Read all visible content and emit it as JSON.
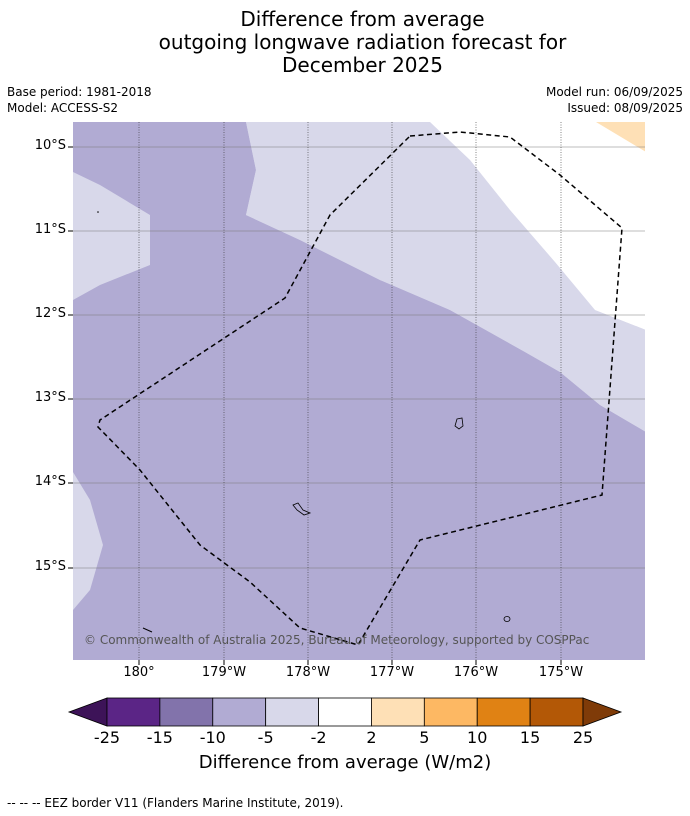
{
  "title": {
    "line1": "Difference from average",
    "line2": "outgoing longwave radiation forecast for",
    "line3": "December 2025"
  },
  "meta_left": {
    "base_period": "Base period: 1981-2018",
    "model": "Model: ACCESS-S2"
  },
  "meta_right": {
    "model_run": "Model run: 06/09/2025",
    "issued": "Issued: 08/09/2025"
  },
  "lat_ticks": [
    "10°S",
    "11°S",
    "12°S",
    "13°S",
    "14°S",
    "15°S"
  ],
  "lon_ticks": [
    "180°",
    "179°W",
    "178°W",
    "177°W",
    "176°W",
    "175°W"
  ],
  "copyright": "© Commonwealth of Australia 2025, Bureau of Meteorology, supported by COSPPac",
  "colorbar": {
    "labels": [
      "-25",
      "-15",
      "-10",
      "-5",
      "-2",
      "2",
      "5",
      "10",
      "15",
      "25"
    ],
    "colors": [
      "#3d1358",
      "#5b2586",
      "#8273ab",
      "#b1abd3",
      "#d8d8ea",
      "#ffffff",
      "#fee0b6",
      "#fdb863",
      "#e08214",
      "#b35806",
      "#7f3b08"
    ],
    "title": "Difference from average (W/m2)"
  },
  "footnote": "--  --  -- EEZ border V11 (Flanders Marine Institute, 2019)."
}
